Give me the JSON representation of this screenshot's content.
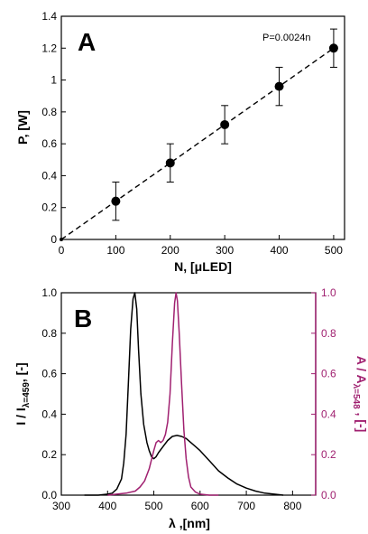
{
  "colors": {
    "black": "#000000",
    "magenta": "#a02070"
  },
  "chart_data": [
    {
      "type": "scatter",
      "panel_label": "A",
      "xlabel": "N, [μLED]",
      "ylabel": "P, [W]",
      "xlim": [
        0,
        520
      ],
      "ylim": [
        0,
        1.4
      ],
      "xticks": [
        0,
        100,
        200,
        300,
        400,
        500
      ],
      "yticks": [
        0,
        0.2,
        0.4,
        0.6,
        0.8,
        1,
        1.2,
        1.4
      ],
      "ytick_labels": [
        "0",
        "0.2",
        "0.4",
        "0.6",
        "0.8",
        "1",
        "1.2",
        "1.4"
      ],
      "points": [
        {
          "x": 100,
          "y": 0.24,
          "err": 0.12
        },
        {
          "x": 200,
          "y": 0.48,
          "err": 0.12
        },
        {
          "x": 300,
          "y": 0.72,
          "err": 0.12
        },
        {
          "x": 400,
          "y": 0.96,
          "err": 0.12
        },
        {
          "x": 500,
          "y": 1.2,
          "err": 0.12
        }
      ],
      "fit": {
        "slope": 0.0024,
        "x": [
          0,
          500
        ],
        "style": "dashed"
      },
      "annotation": "P=0.0024n"
    },
    {
      "type": "line",
      "panel_label": "B",
      "xlabel": "λ ,[nm]",
      "ylabel_left": {
        "main": "I / I",
        "sub": "λ=459",
        "tail": ", [-]"
      },
      "ylabel_right": {
        "main": "A / A",
        "sub": "λ=548",
        "tail": " , [-]"
      },
      "xlim": [
        300,
        850
      ],
      "ylim": [
        0,
        1.0
      ],
      "xticks": [
        300,
        400,
        500,
        600,
        700,
        800
      ],
      "yticks": [
        0,
        0.2,
        0.4,
        0.6,
        0.8,
        1.0
      ],
      "ytick_labels": [
        "0.0",
        "0.2",
        "0.4",
        "0.6",
        "0.8",
        "1.0"
      ],
      "series": [
        {
          "axis": "left",
          "color": "#000000",
          "x": [
            350,
            380,
            400,
            410,
            420,
            430,
            435,
            440,
            445,
            450,
            455,
            459,
            463,
            467,
            472,
            478,
            485,
            490,
            495,
            500,
            505,
            510,
            520,
            530,
            540,
            550,
            560,
            570,
            580,
            590,
            600,
            620,
            640,
            660,
            680,
            700,
            720,
            740,
            760,
            780
          ],
          "y": [
            0,
            0,
            0.005,
            0.01,
            0.03,
            0.08,
            0.16,
            0.3,
            0.55,
            0.82,
            0.97,
            1.0,
            0.92,
            0.72,
            0.5,
            0.35,
            0.26,
            0.22,
            0.19,
            0.18,
            0.19,
            0.21,
            0.24,
            0.27,
            0.29,
            0.295,
            0.29,
            0.28,
            0.26,
            0.24,
            0.22,
            0.17,
            0.12,
            0.085,
            0.055,
            0.035,
            0.02,
            0.01,
            0.005,
            0
          ]
        },
        {
          "axis": "right",
          "color": "#a02070",
          "x": [
            400,
            420,
            440,
            460,
            470,
            480,
            490,
            500,
            505,
            510,
            515,
            520,
            525,
            530,
            535,
            540,
            545,
            548,
            551,
            555,
            560,
            565,
            570,
            575,
            580,
            590,
            600,
            620,
            640
          ],
          "y": [
            0,
            0.005,
            0.01,
            0.02,
            0.04,
            0.07,
            0.13,
            0.22,
            0.26,
            0.27,
            0.26,
            0.27,
            0.3,
            0.36,
            0.5,
            0.75,
            0.95,
            1.0,
            0.96,
            0.8,
            0.55,
            0.32,
            0.18,
            0.09,
            0.04,
            0.015,
            0.005,
            0,
            0
          ]
        }
      ]
    }
  ]
}
